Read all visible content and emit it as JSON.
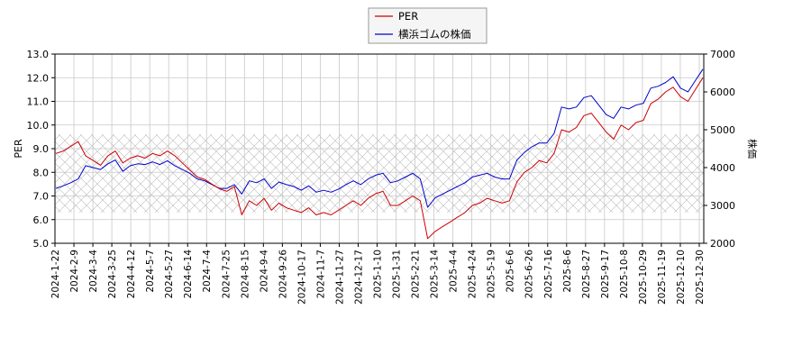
{
  "chart_data": {
    "type": "line",
    "title": "",
    "xlabel": "",
    "ylabel_left": "PER",
    "ylabel_right": "株価",
    "left_ylim": [
      5.0,
      13.0
    ],
    "right_ylim": [
      2000,
      7000
    ],
    "left_ticks": [
      "5.0",
      "6.0",
      "7.0",
      "8.0",
      "9.0",
      "10.0",
      "11.0",
      "12.0",
      "13.0"
    ],
    "right_ticks": [
      "2000",
      "3000",
      "4000",
      "5000",
      "6000",
      "7000"
    ],
    "grid": true,
    "hatched_band_left": [
      6.3,
      9.6
    ],
    "legend_position": "top-center",
    "x_tick_labels": [
      "2024-1-22",
      "2024-2-9",
      "2024-3-4",
      "2024-3-25",
      "2024-4-12",
      "2024-5-7",
      "2024-5-27",
      "2024-6-14",
      "2024-7-4",
      "2024-7-25",
      "2024-8-15",
      "2024-9-4",
      "2024-9-26",
      "2024-10-17",
      "2024-11-7",
      "2024-11-27",
      "2024-12-17",
      "2025-1-10",
      "2025-1-31",
      "2025-2-21",
      "2025-3-14",
      "2025-4-4",
      "2025-4-24",
      "2025-5-19",
      "2025-6-6",
      "2025-6-26",
      "2025-7-16",
      "2025-8-6",
      "2025-8-27",
      "2025-9-17",
      "2025-10-8",
      "2025-10-29",
      "2025-11-19",
      "2025-12-10",
      "2025-12-30"
    ],
    "series": [
      {
        "name": "PER",
        "axis": "left",
        "color": "#cc0000",
        "values": [
          8.8,
          8.9,
          9.1,
          9.3,
          8.7,
          8.5,
          8.3,
          8.7,
          8.9,
          8.4,
          8.6,
          8.7,
          8.6,
          8.8,
          8.7,
          8.9,
          8.7,
          8.4,
          8.1,
          7.8,
          7.7,
          7.5,
          7.3,
          7.2,
          7.4,
          6.2,
          6.8,
          6.6,
          6.9,
          6.4,
          6.7,
          6.5,
          6.4,
          6.3,
          6.5,
          6.2,
          6.3,
          6.2,
          6.4,
          6.6,
          6.8,
          6.6,
          6.9,
          7.1,
          7.2,
          6.6,
          6.6,
          6.8,
          7.0,
          6.8,
          5.2,
          5.5,
          5.7,
          5.9,
          6.1,
          6.3,
          6.6,
          6.7,
          6.9,
          6.8,
          6.7,
          6.8,
          7.6,
          8.0,
          8.2,
          8.5,
          8.4,
          8.8,
          9.8,
          9.7,
          9.9,
          10.4,
          10.5,
          10.1,
          9.7,
          9.4,
          10.0,
          9.8,
          10.1,
          10.2,
          10.9,
          11.1,
          11.4,
          11.6,
          11.2,
          11.0,
          11.5,
          12.0
        ]
      },
      {
        "name": "横浜ゴムの株価",
        "axis": "right",
        "color": "#0000cc",
        "values": [
          3450,
          3520,
          3600,
          3700,
          4050,
          4000,
          3950,
          4100,
          4200,
          3900,
          4050,
          4100,
          4080,
          4150,
          4080,
          4180,
          4050,
          3950,
          3850,
          3700,
          3650,
          3550,
          3450,
          3450,
          3550,
          3300,
          3650,
          3600,
          3700,
          3450,
          3620,
          3550,
          3500,
          3400,
          3520,
          3350,
          3400,
          3350,
          3430,
          3550,
          3650,
          3550,
          3700,
          3800,
          3850,
          3600,
          3650,
          3750,
          3850,
          3700,
          2950,
          3200,
          3300,
          3400,
          3500,
          3600,
          3750,
          3800,
          3850,
          3750,
          3700,
          3700,
          4200,
          4400,
          4550,
          4650,
          4650,
          4900,
          5600,
          5550,
          5600,
          5850,
          5900,
          5650,
          5400,
          5300,
          5600,
          5550,
          5650,
          5700,
          6100,
          6150,
          6250,
          6400,
          6100,
          6000,
          6300,
          6600
        ]
      }
    ]
  }
}
